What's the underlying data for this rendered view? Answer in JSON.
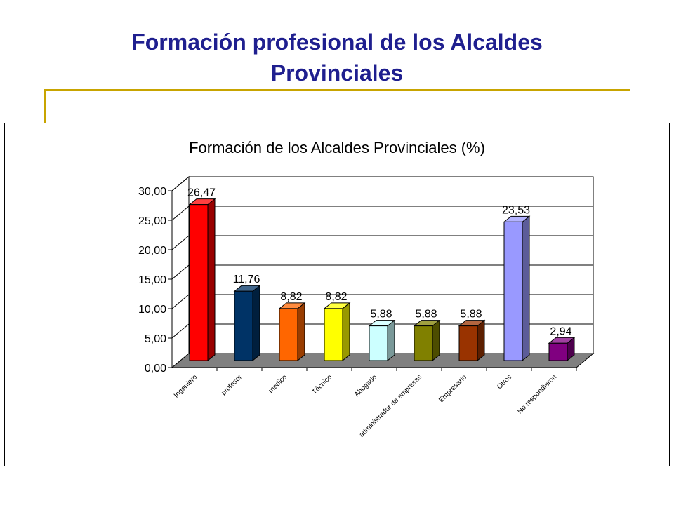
{
  "slide": {
    "title_line1": "Formación profesional de los Alcaldes",
    "title_line2": "Provinciales"
  },
  "chart_data": {
    "type": "bar",
    "title": "Formación de los Alcaldes Provinciales (%)",
    "categories": [
      "Ingeniero",
      "profesor",
      "medico",
      "Técnico",
      "Abogado",
      "administrador de empresas",
      "Empresario",
      "Otros",
      "No respondieron"
    ],
    "values": [
      26.47,
      11.76,
      8.82,
      8.82,
      5.88,
      5.88,
      5.88,
      23.53,
      2.94
    ],
    "data_labels": [
      "26,47",
      "11,76",
      "8,82",
      "8,82",
      "5,88",
      "5,88",
      "5,88",
      "23,53",
      "2,94"
    ],
    "colors": [
      "#ff0000",
      "#003366",
      "#ff6600",
      "#ffff00",
      "#ccffff",
      "#808000",
      "#993300",
      "#9999ff",
      "#800080"
    ],
    "yticks": [
      "0,00",
      "5,00",
      "10,00",
      "15,00",
      "20,00",
      "25,00",
      "30,00"
    ],
    "ylim": [
      0,
      30
    ],
    "grid": true,
    "style": "3d-column"
  }
}
